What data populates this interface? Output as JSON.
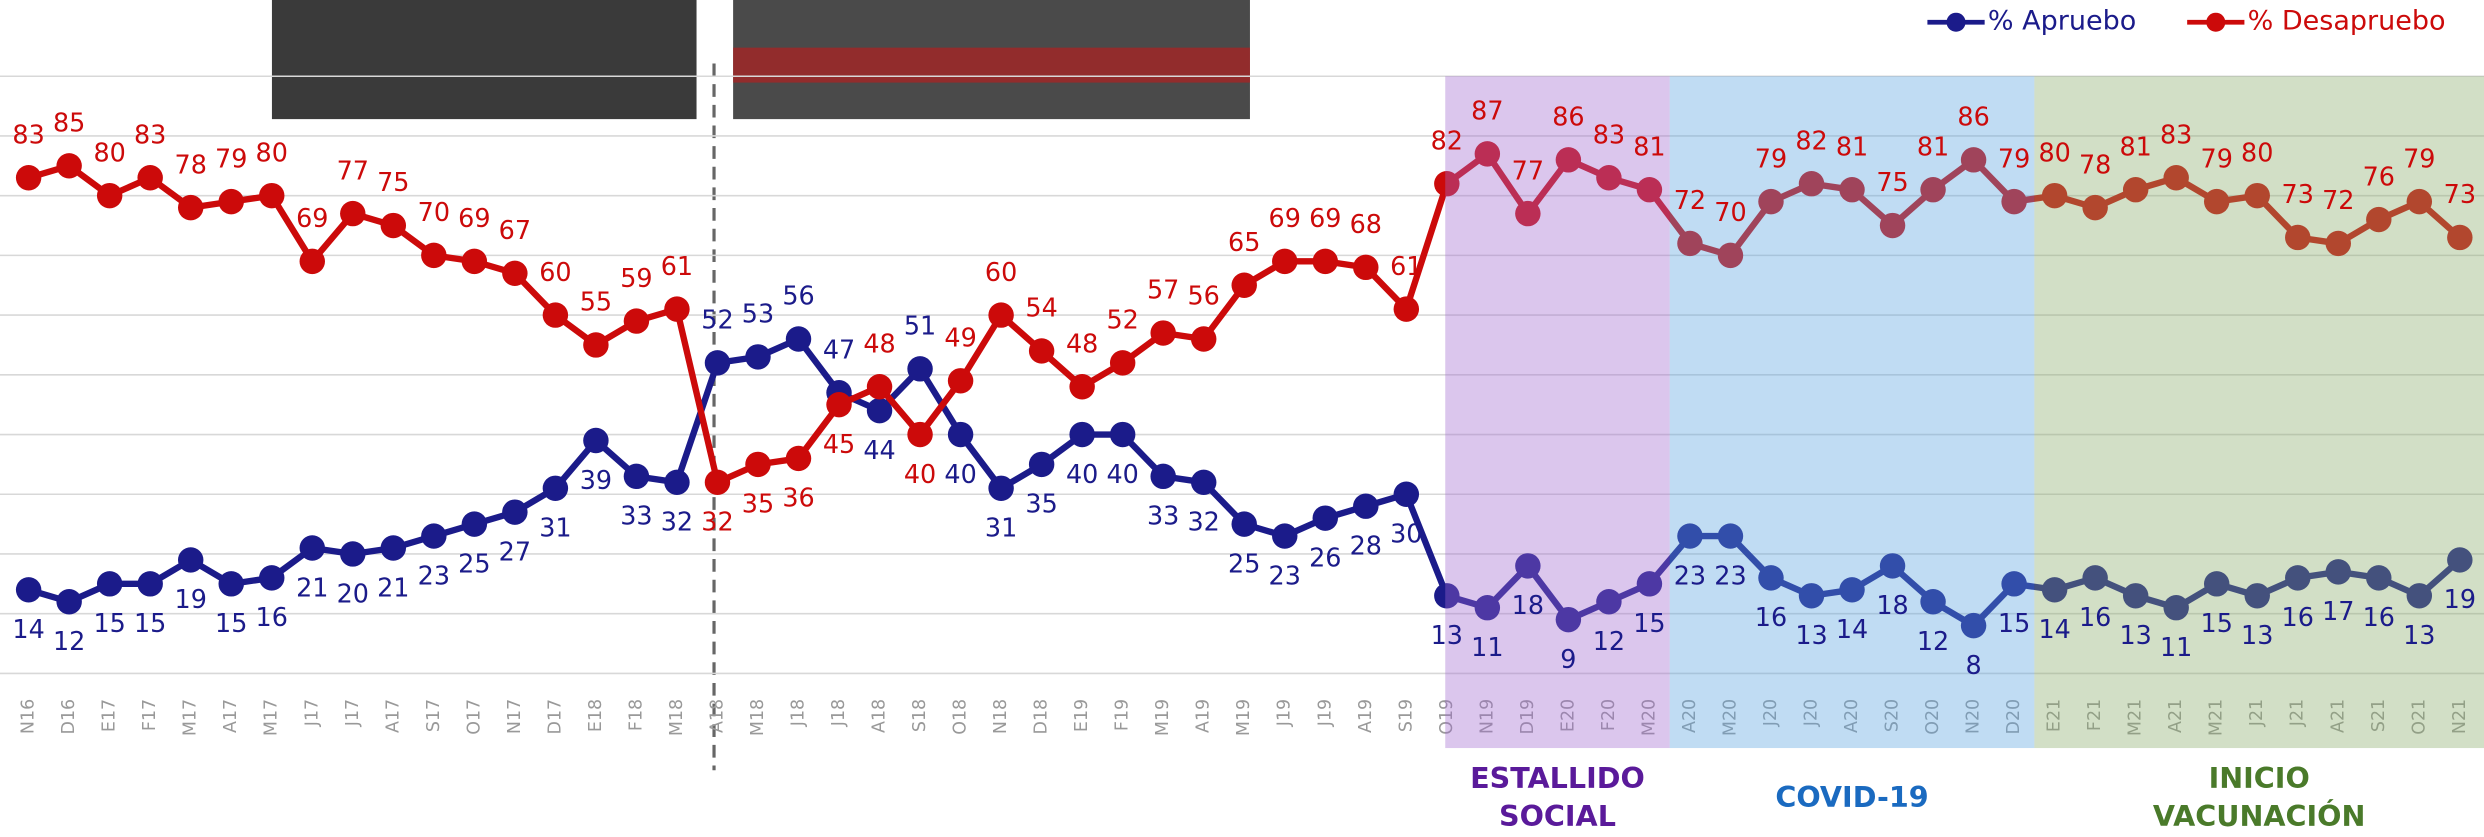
{
  "chart_data": {
    "type": "line",
    "categories": [
      "N16",
      "D16",
      "E17",
      "F17",
      "M17",
      "A17",
      "M17",
      "J17",
      "J17",
      "A17",
      "S17",
      "O17",
      "N17",
      "D17",
      "E18",
      "F18",
      "M18",
      "A18",
      "M18",
      "J18",
      "J18",
      "A18",
      "S18",
      "O18",
      "N18",
      "D18",
      "E19",
      "F19",
      "M19",
      "A19",
      "M19",
      "J19",
      "J19",
      "A19",
      "S19",
      "O19",
      "N19",
      "D19",
      "E20",
      "F20",
      "M20",
      "A20",
      "M20",
      "J20",
      "J20",
      "A20",
      "S20",
      "O20",
      "N20",
      "D20",
      "E21",
      "F21",
      "M21",
      "A21",
      "M21",
      "J21",
      "J21",
      "A21",
      "S21",
      "O21",
      "N21"
    ],
    "series": [
      {
        "name": "% Apruebo",
        "color": "#1b1b8a",
        "values": [
          14,
          12,
          15,
          15,
          19,
          15,
          16,
          21,
          20,
          21,
          23,
          25,
          27,
          31,
          39,
          33,
          32,
          52,
          53,
          56,
          47,
          44,
          51,
          40,
          31,
          35,
          40,
          40,
          33,
          32,
          25,
          23,
          26,
          28,
          30,
          13,
          11,
          18,
          9,
          12,
          15,
          23,
          23,
          16,
          13,
          14,
          18,
          12,
          8,
          15,
          14,
          16,
          13,
          11,
          15,
          13,
          16,
          17,
          16,
          13,
          19
        ]
      },
      {
        "name": "% Desapruebo",
        "color": "#cc0a0a",
        "values": [
          83,
          85,
          80,
          83,
          78,
          79,
          80,
          69,
          77,
          75,
          70,
          69,
          67,
          60,
          55,
          59,
          61,
          32,
          35,
          36,
          45,
          48,
          40,
          49,
          60,
          54,
          48,
          52,
          57,
          56,
          65,
          69,
          69,
          68,
          61,
          82,
          87,
          77,
          86,
          83,
          81,
          72,
          70,
          79,
          82,
          81,
          75,
          81,
          86,
          79,
          80,
          78,
          81,
          83,
          79,
          80,
          73,
          72,
          76,
          79,
          73
        ]
      }
    ],
    "ylim": [
      0,
      100
    ],
    "yticks": [
      0,
      10,
      20,
      30,
      40,
      50,
      60,
      70,
      80,
      90,
      100
    ],
    "grid": true,
    "legend": "top-right",
    "periods": [
      {
        "label": [
          "ESTALLIDO",
          "SOCIAL"
        ],
        "color": "#a06ad0",
        "text_color": "#5a1a9a"
      },
      {
        "label": [
          "COVID-19"
        ],
        "color": "#5aa2e0",
        "text_color": "#1a6ac0"
      },
      {
        "label": [
          "INICIO",
          "VACUNACIÓN"
        ],
        "color": "#8aaa6a",
        "text_color": "#4a7a2a"
      }
    ]
  }
}
